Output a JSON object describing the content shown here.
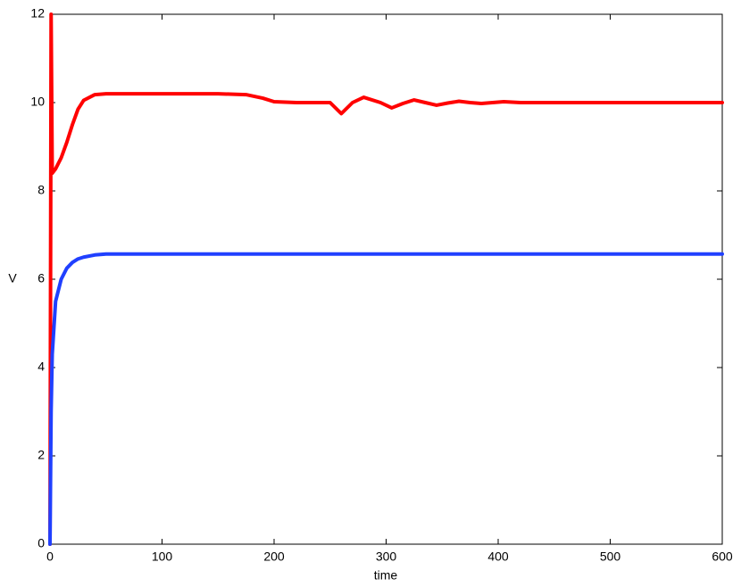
{
  "chart_data": {
    "type": "line",
    "xlabel": "time",
    "ylabel": "V",
    "x": [
      0,
      1,
      2,
      5,
      10,
      15,
      20,
      25,
      30,
      40,
      50,
      100,
      150,
      175,
      190,
      200,
      220,
      250,
      260,
      270,
      280,
      295,
      305,
      315,
      325,
      335,
      345,
      355,
      365,
      375,
      385,
      395,
      405,
      420,
      440,
      500,
      550,
      600
    ],
    "series": [
      {
        "color": "#ff0000",
        "values": [
          0,
          12,
          8.4,
          8.5,
          8.75,
          9.1,
          9.5,
          9.85,
          10.05,
          10.18,
          10.2,
          10.2,
          10.2,
          10.18,
          10.1,
          10.02,
          10.0,
          10.0,
          9.75,
          10.0,
          10.12,
          10.0,
          9.88,
          9.98,
          10.06,
          10.0,
          9.94,
          9.99,
          10.03,
          10.0,
          9.98,
          10.0,
          10.02,
          10.0,
          10,
          10,
          10,
          10
        ]
      },
      {
        "color": "#2040ff",
        "values": [
          0,
          3,
          4.3,
          5.5,
          6.0,
          6.25,
          6.38,
          6.46,
          6.5,
          6.55,
          6.57,
          6.57,
          6.57,
          6.57,
          6.57,
          6.57,
          6.57,
          6.57,
          6.57,
          6.57,
          6.57,
          6.57,
          6.57,
          6.57,
          6.57,
          6.57,
          6.57,
          6.57,
          6.57,
          6.57,
          6.57,
          6.57,
          6.57,
          6.57,
          6.57,
          6.57,
          6.57,
          6.57
        ]
      }
    ],
    "xlim": [
      0,
      600
    ],
    "xticks": [
      0,
      100,
      200,
      300,
      400,
      500,
      600
    ],
    "ylim": [
      0,
      12
    ],
    "yticks": [
      0,
      2,
      4,
      6,
      8,
      10,
      12
    ],
    "grid": false
  }
}
